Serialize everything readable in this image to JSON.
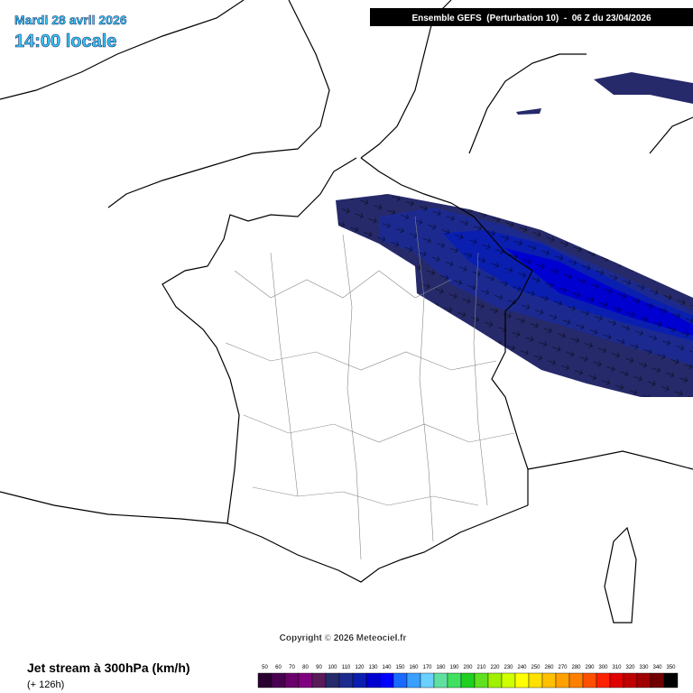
{
  "header": {
    "date": "Mardi 28 avril 2026",
    "time": "14:00 locale",
    "model": "Ensemble GEFS  (Perturbation 10)  -  06 Z du 23/04/2026"
  },
  "copyright": "Copyright © 2026 Meteociel.fr",
  "footer": {
    "title": "Jet stream à 300hPa (km/h)",
    "lead": "(+ 126h)"
  },
  "legend": {
    "labels": [
      50,
      60,
      70,
      80,
      90,
      100,
      110,
      120,
      130,
      140,
      150,
      160,
      170,
      180,
      190,
      200,
      210,
      220,
      230,
      240,
      250,
      260,
      270,
      280,
      290,
      300,
      310,
      320,
      330,
      340,
      350
    ],
    "colors": [
      "#2a0030",
      "#4a0050",
      "#6a006a",
      "#800080",
      "#5a1a5a",
      "#262a6a",
      "#1c2a90",
      "#0a1fb0",
      "#0000d0",
      "#0000ff",
      "#1a6aff",
      "#3aa0ff",
      "#6ad0ff",
      "#60e0a0",
      "#40e060",
      "#20d020",
      "#60e020",
      "#a0f000",
      "#d0ff00",
      "#ffff00",
      "#ffe000",
      "#ffc000",
      "#ffa000",
      "#ff8000",
      "#ff5000",
      "#ff2000",
      "#e00000",
      "#c00000",
      "#a00000",
      "#700000",
      "#000000"
    ]
  }
}
